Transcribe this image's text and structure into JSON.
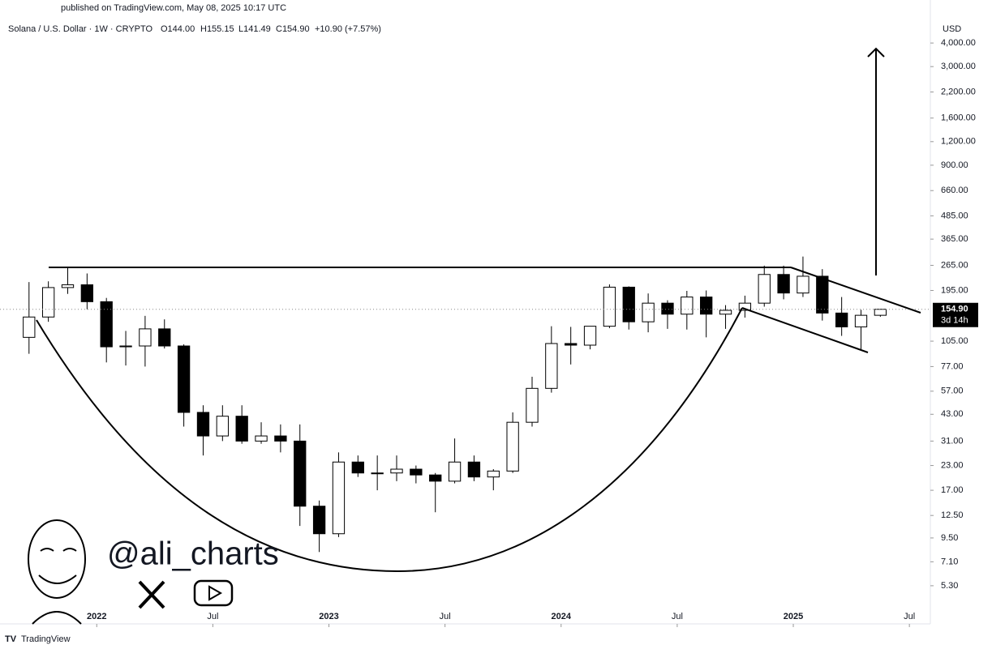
{
  "header": {
    "published": "published on TradingView.com, May 08, 2025 10:17 UTC",
    "symbol": "Solana / U.S. Dollar · 1W · CRYPTO",
    "open": "O144.00",
    "high": "H155.15",
    "low": "L141.49",
    "close": "C154.90",
    "change": "+10.90 (+7.57%)"
  },
  "watermark": {
    "handle": "@ali_charts"
  },
  "footer": {
    "brand": "TradingView"
  },
  "chart_data": {
    "type": "candlestick",
    "currency": "USD",
    "log_scale": true,
    "up_color": "#ffffff",
    "down_color": "#000000",
    "x": [
      "2021-09",
      "2021-10",
      "2021-11",
      "2021-12",
      "2022-01",
      "2022-02",
      "2022-03",
      "2022-04",
      "2022-05",
      "2022-06",
      "2022-07",
      "2022-08",
      "2022-09",
      "2022-10",
      "2022-11",
      "2022-12",
      "2023-01",
      "2023-02",
      "2023-03",
      "2023-04",
      "2023-05",
      "2023-06",
      "2023-07",
      "2023-08",
      "2023-09",
      "2023-10",
      "2023-11",
      "2023-12",
      "2024-01",
      "2024-02",
      "2024-03",
      "2024-04",
      "2024-05",
      "2024-06",
      "2024-07",
      "2024-08",
      "2024-09",
      "2024-10",
      "2024-11",
      "2024-12",
      "2025-01",
      "2025-02",
      "2025-03",
      "2025-04",
      "2025-05"
    ],
    "open": [
      110,
      141,
      202,
      209,
      170,
      98,
      99,
      122,
      99,
      44,
      33,
      42,
      31,
      33,
      31,
      14,
      10,
      24,
      21,
      21,
      22,
      20.5,
      19,
      24,
      20,
      21.5,
      39,
      59,
      102,
      100,
      126,
      203,
      133,
      167,
      146,
      180,
      146,
      153,
      167,
      237,
      189,
      232,
      148,
      125,
      144
    ],
    "high": [
      216,
      218,
      260,
      240,
      178,
      119,
      143,
      137,
      101,
      48,
      48,
      48,
      39,
      38,
      38,
      15,
      27,
      26,
      26,
      26,
      23,
      21,
      32,
      26,
      22,
      44,
      68,
      126,
      125,
      126,
      210,
      205,
      188,
      173,
      194,
      195,
      163,
      183,
      264,
      264,
      295,
      253,
      180,
      154,
      155.15
    ],
    "low": [
      90,
      133,
      187,
      155,
      81,
      78,
      77,
      96,
      37,
      26,
      31,
      30,
      30,
      27,
      11,
      8,
      9.6,
      20,
      17,
      19,
      18.5,
      13,
      18.5,
      19,
      17,
      21,
      37,
      56,
      79,
      95,
      123,
      121,
      117,
      122,
      121,
      110,
      122,
      140,
      160,
      175,
      180,
      135,
      112,
      95,
      141.49
    ],
    "close": [
      141,
      202,
      209,
      170,
      98,
      99,
      122,
      99,
      44,
      33,
      42,
      31,
      33,
      31,
      14,
      10,
      24,
      21,
      21,
      22,
      20.5,
      19,
      24,
      20,
      21.5,
      39,
      59,
      102,
      100,
      126,
      203,
      133,
      167,
      146,
      180,
      146,
      153,
      167,
      237,
      189,
      232,
      148,
      125,
      144,
      154.9
    ],
    "xlim": [
      "2021-08",
      "2025-08"
    ],
    "xticks": [
      {
        "value": "2022-01",
        "label": "2022"
      },
      {
        "value": "2022-07",
        "label": "Jul"
      },
      {
        "value": "2023-01",
        "label": "2023"
      },
      {
        "value": "2023-07",
        "label": "Jul"
      },
      {
        "value": "2024-01",
        "label": "2024"
      },
      {
        "value": "2024-07",
        "label": "Jul"
      },
      {
        "value": "2025-01",
        "label": "2025"
      },
      {
        "value": "2025-07",
        "label": "Jul"
      }
    ],
    "ylim": [
      4.26,
      5550
    ],
    "yticks": [
      {
        "value": 4000,
        "label": "4,000.00"
      },
      {
        "value": 3000,
        "label": "3,000.00"
      },
      {
        "value": 2200,
        "label": "2,200.00"
      },
      {
        "value": 1600,
        "label": "1,600.00"
      },
      {
        "value": 1200,
        "label": "1,200.00"
      },
      {
        "value": 900,
        "label": "900.00"
      },
      {
        "value": 660,
        "label": "660.00"
      },
      {
        "value": 485,
        "label": "485.00"
      },
      {
        "value": 365,
        "label": "365.00"
      },
      {
        "value": 265,
        "label": "265.00"
      },
      {
        "value": 195,
        "label": "195.00"
      },
      {
        "value": 105,
        "label": "105.00"
      },
      {
        "value": 77,
        "label": "77.00"
      },
      {
        "value": 57,
        "label": "57.00"
      },
      {
        "value": 43,
        "label": "43.00"
      },
      {
        "value": 31,
        "label": "31.00"
      },
      {
        "value": 23,
        "label": "23.00"
      },
      {
        "value": 17,
        "label": "17.00"
      },
      {
        "value": 12.5,
        "label": "12.50"
      },
      {
        "value": 9.5,
        "label": "9.50"
      },
      {
        "value": 7.1,
        "label": "7.10"
      },
      {
        "value": 5.3,
        "label": "5.30"
      }
    ],
    "last_price": {
      "value": 154.9,
      "label": "154.90"
    },
    "countdown": "3d 14h"
  }
}
